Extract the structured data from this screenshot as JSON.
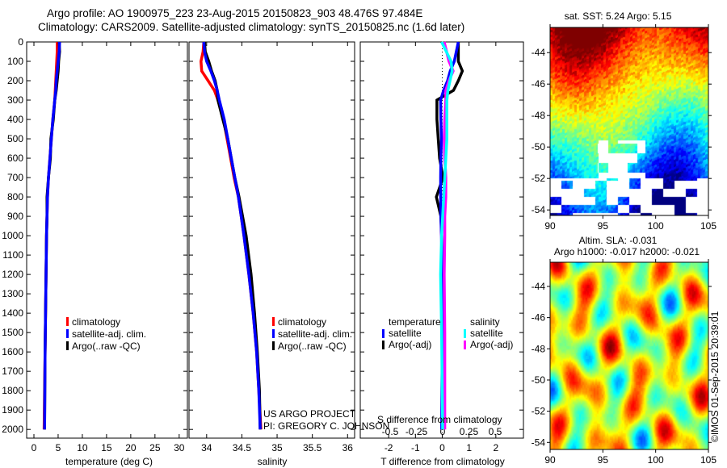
{
  "header": {
    "line1": "Argo profile: AO 1900975_223 23-Aug-2015 20150823_903 48.476S 97.484E",
    "line2": "Climatology: CARS2009. Satellite-adjusted climatology: synTS_20150825.nc (1.6d later)"
  },
  "colors": {
    "climatology": "#ff0000",
    "satellite_adj": "#0000ff",
    "argo": "#000000",
    "sal_satellite": "#00ffff",
    "sal_argo": "#ff00ff"
  },
  "credits": {
    "project": "US ARGO PROJECT",
    "pi": "PI: GREGORY C. JOHNSON",
    "imos": "©IMOS 01-Sep-2015 20:39:01"
  },
  "chart_data": [
    {
      "type": "line",
      "title": "",
      "xlabel": "temperature (deg C)",
      "ylabel": "",
      "xticks": [
        0,
        5,
        10,
        15,
        20,
        25,
        30
      ],
      "yticks": [
        0,
        100,
        200,
        300,
        400,
        500,
        600,
        700,
        800,
        900,
        1000,
        1100,
        1200,
        1300,
        1400,
        1500,
        1600,
        1700,
        1800,
        1900,
        2000
      ],
      "xlim": [
        -1.5,
        31.7
      ],
      "ylim": [
        2045,
        0
      ],
      "legend": [
        "climatology",
        "satellite-adj. clim.",
        "Argo(..raw -QC)"
      ],
      "depth": [
        0,
        50,
        100,
        150,
        200,
        250,
        300,
        400,
        500,
        600,
        700,
        800,
        900,
        1000,
        1200,
        1400,
        1600,
        1800,
        2000
      ],
      "series": [
        {
          "name": "climatology",
          "values": [
            4.8,
            4.8,
            4.7,
            4.6,
            4.5,
            4.4,
            4.3,
            3.9,
            3.6,
            3.3,
            3.0,
            2.8,
            2.7,
            2.6,
            2.5,
            2.4,
            2.3,
            2.2,
            2.1
          ]
        },
        {
          "name": "Argo(..raw -QC)",
          "values": [
            5.2,
            5.3,
            5.1,
            5.0,
            4.8,
            4.6,
            4.3,
            4.0,
            3.5,
            3.4,
            3.0,
            2.7,
            2.7,
            2.6,
            2.5,
            2.4,
            2.3,
            2.25,
            2.2
          ]
        },
        {
          "name": "satellite-adj. clim.",
          "values": [
            5.3,
            5.2,
            5.0,
            4.8,
            4.6,
            4.5,
            4.3,
            3.9,
            3.6,
            3.3,
            3.0,
            2.8,
            2.7,
            2.6,
            2.5,
            2.4,
            2.3,
            2.25,
            2.2
          ]
        }
      ]
    },
    {
      "type": "line",
      "xlabel": "salinity",
      "xticks": [
        34,
        34.5,
        35,
        35.5,
        36
      ],
      "xlim": [
        33.75,
        36.1
      ],
      "ylim": [
        2045,
        0
      ],
      "legend": [
        "climatology",
        "satellite-adj. clim.",
        "Argo(..raw -QC)"
      ],
      "depth": [
        0,
        50,
        100,
        150,
        200,
        250,
        300,
        400,
        500,
        600,
        700,
        800,
        900,
        1000,
        1200,
        1400,
        1600,
        1800,
        2000
      ],
      "series": [
        {
          "name": "climatology",
          "values": [
            33.96,
            33.95,
            33.92,
            33.93,
            34.02,
            34.11,
            34.16,
            34.24,
            34.29,
            34.34,
            34.39,
            34.45,
            34.49,
            34.53,
            34.6,
            34.66,
            34.71,
            34.74,
            34.77
          ]
        },
        {
          "name": "Argo(..raw -QC)",
          "values": [
            33.97,
            33.98,
            34.03,
            34.07,
            34.12,
            34.15,
            34.16,
            34.23,
            34.3,
            34.35,
            34.4,
            34.46,
            34.51,
            34.56,
            34.63,
            34.68,
            34.72,
            34.75,
            34.76
          ]
        },
        {
          "name": "satellite-adj. clim.",
          "values": [
            33.96,
            33.97,
            34.0,
            34.06,
            34.11,
            34.15,
            34.18,
            34.25,
            34.3,
            34.35,
            34.4,
            34.45,
            34.49,
            34.53,
            34.6,
            34.66,
            34.71,
            34.74,
            34.76
          ]
        }
      ]
    },
    {
      "type": "line",
      "xlabel": "T difference from climatology",
      "xlabel2": "S difference from climatology",
      "xticks": [
        -2,
        -1,
        0,
        1,
        2
      ],
      "xticks_labels": [
        "-2",
        "-1",
        "0",
        "1",
        "2"
      ],
      "xticks2": [
        -0.5,
        -0.25,
        0,
        0.25,
        0.5
      ],
      "xticks2_labels": [
        "-0.5",
        "-0.25",
        "0",
        "0.25",
        "0.5"
      ],
      "xlim": [
        -3.06,
        3.03
      ],
      "xlim2": [
        -0.785,
        0.77
      ],
      "ylim": [
        2045,
        0
      ],
      "legend_temperature": {
        "heading": "temperature",
        "items": [
          "satellite",
          "Argo(-adj)"
        ]
      },
      "legend_salinity": {
        "heading": "salinity",
        "items": [
          "satellite",
          "Argo(-adj)"
        ]
      },
      "depth": [
        0,
        100,
        150,
        200,
        250,
        300,
        400,
        500,
        600,
        700,
        800,
        900,
        1000,
        1200,
        1500,
        2000
      ],
      "series": [
        {
          "name": "temperature Argo(-adj)",
          "axis": "T",
          "values": [
            0.6,
            0.6,
            0.75,
            0.6,
            0.42,
            -0.2,
            -0.2,
            -0.15,
            -0.1,
            0.03,
            -0.22,
            -0.05,
            -0.02,
            0,
            0,
            0
          ]
        },
        {
          "name": "temperature satellite",
          "axis": "T",
          "values": [
            0.6,
            0.45,
            0.3,
            0.2,
            0.05,
            -0.06,
            -0.05,
            -0.03,
            -0.05,
            -0.06,
            -0.06,
            -0.05,
            -0.03,
            0,
            0,
            -0.02
          ]
        },
        {
          "name": "salinity Argo(-adj)",
          "axis": "S",
          "values": [
            0.015,
            0.06,
            0.1,
            0.06,
            0.03,
            0.03,
            0.02,
            0.015,
            0.02,
            0.03,
            0.03,
            0.02,
            0.02,
            0.015,
            0.02,
            0.02
          ]
        },
        {
          "name": "salinity satellite",
          "axis": "S",
          "values": [
            -0.01,
            0.08,
            0.09,
            0.07,
            0.05,
            0.04,
            0.04,
            0.04,
            0.03,
            0.02,
            0.01,
            0.0,
            -0.01,
            -0.02,
            -0.01,
            0.0
          ]
        }
      ]
    },
    {
      "type": "heatmap",
      "title": "sat. SST: 5.24 Argo: 5.15",
      "xticks": [
        90,
        95,
        100,
        105
      ],
      "yticks": [
        -44,
        -46,
        -48,
        -50,
        -52,
        -54
      ],
      "xlim": [
        90,
        105
      ],
      "ylim": [
        -54.35,
        -42.4
      ]
    },
    {
      "type": "heatmap",
      "title": "Altim. SLA: -0.031",
      "subtitle": "Argo h1000: -0.017 h2000: -0.021",
      "xticks": [
        90,
        95,
        100,
        105
      ],
      "yticks": [
        -44,
        -46,
        -48,
        -50,
        -52,
        -54
      ],
      "xlim": [
        90,
        105
      ],
      "ylim": [
        -54.45,
        -42.45
      ]
    }
  ]
}
